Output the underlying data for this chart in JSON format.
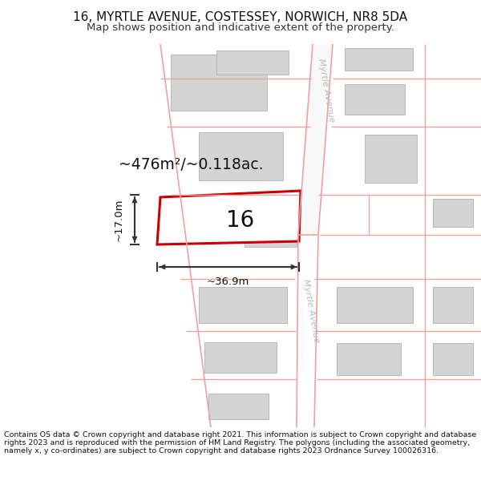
{
  "title_line1": "16, MYRTLE AVENUE, COSTESSEY, NORWICH, NR8 5DA",
  "title_line2": "Map shows position and indicative extent of the property.",
  "footer_text": "Contains OS data © Crown copyright and database right 2021. This information is subject to Crown copyright and database rights 2023 and is reproduced with the permission of HM Land Registry. The polygons (including the associated geometry, namely x, y co-ordinates) are subject to Crown copyright and database rights 2023 Ordnance Survey 100026316.",
  "area_label": "~476m²/~0.118ac.",
  "width_label": "~36.9m",
  "height_label": "~17.0m",
  "plot_number": "16",
  "bg_color": "#ffffff",
  "road_line_color": "#f0a0a0",
  "building_color": "#d4d4d4",
  "building_edge": "#b8b8b8",
  "highlight_color": "#cc0000",
  "road_label_color": "#bbbbbb",
  "street_label": "Myrtle Avenue",
  "dim_color": "#333333",
  "title_fontsize": 11,
  "subtitle_fontsize": 9.5,
  "footer_fontsize": 6.8
}
